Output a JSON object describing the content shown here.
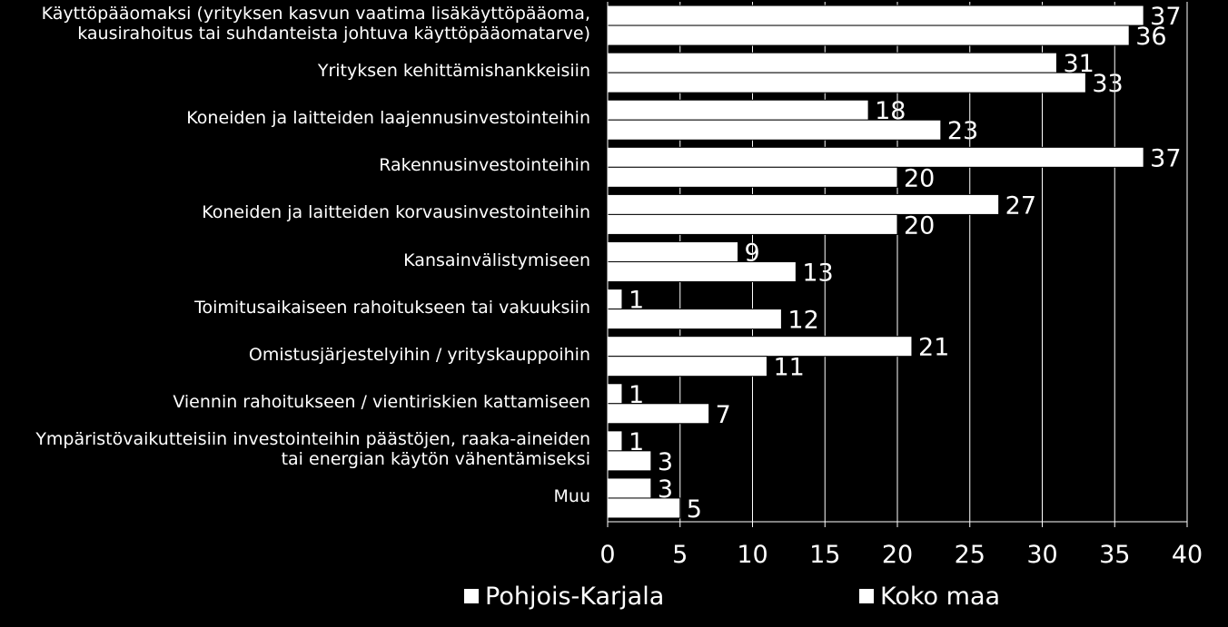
{
  "chart_data": {
    "type": "bar",
    "orientation": "horizontal",
    "categories": [
      "Käyttöpääomaksi (yrityksen kasvun vaatima lisäkäyttöpääoma, kausirahoitus tai suhdanteista johtuva käyttöpääomatarve)",
      "Yrityksen kehittämishankkeisiin",
      "Koneiden ja laitteiden laajennusinvestointeihin",
      "Rakennusinvestointeihin",
      "Koneiden ja laitteiden korvausinvestointeihin",
      "Kansainvälistymiseen",
      "Toimitusaikaiseen rahoitukseen tai vakuuksiin",
      "Omistusjärjestelyihin / yrityskauppoihin",
      "Viennin rahoitukseen / vientiriskien kattamiseen",
      "Ympäristövaikutteisiin investointeihin päästöjen, raaka-aineiden tai energian käytön vähentämiseksi",
      "Muu"
    ],
    "category_lines": [
      [
        "Käyttöpääomaksi (yrityksen kasvun vaatima lisäkäyttöpääoma,",
        "kausirahoitus tai suhdanteista johtuva käyttöpääomatarve)"
      ],
      [
        "Yrityksen kehittämishankkeisiin"
      ],
      [
        "Koneiden ja laitteiden laajennusinvestointeihin"
      ],
      [
        "Rakennusinvestointeihin"
      ],
      [
        "Koneiden ja laitteiden korvausinvestointeihin"
      ],
      [
        "Kansainvälistymiseen"
      ],
      [
        "Toimitusaikaiseen rahoitukseen tai vakuuksiin"
      ],
      [
        "Omistusjärjestelyihin / yrityskauppoihin"
      ],
      [
        "Viennin rahoitukseen / vientiriskien kattamiseen"
      ],
      [
        "Ympäristövaikutteisiin investointeihin päästöjen, raaka-aineiden",
        "tai energian käytön vähentämiseksi"
      ],
      [
        "Muu"
      ]
    ],
    "series": [
      {
        "name": "Pohjois-Karjala",
        "values": [
          37,
          31,
          18,
          37,
          27,
          9,
          1,
          21,
          1,
          1,
          3
        ]
      },
      {
        "name": "Koko maa",
        "values": [
          36,
          33,
          23,
          20,
          20,
          13,
          12,
          11,
          7,
          3,
          5
        ]
      }
    ],
    "xlim": [
      0,
      40
    ],
    "xticks": [
      "0",
      "5",
      "10",
      "15",
      "20",
      "25",
      "30",
      "35",
      "40"
    ],
    "xlabel": "",
    "ylabel": "",
    "title": "",
    "grid": true,
    "legend": [
      "Pohjois-Karjala",
      "Koko maa"
    ],
    "legend_position": "bottom",
    "colors": {
      "background": "#000000",
      "bar": "#ffffff",
      "bar_edge": "#000000",
      "text": "#ffffff",
      "grid": "#ffffff"
    }
  }
}
